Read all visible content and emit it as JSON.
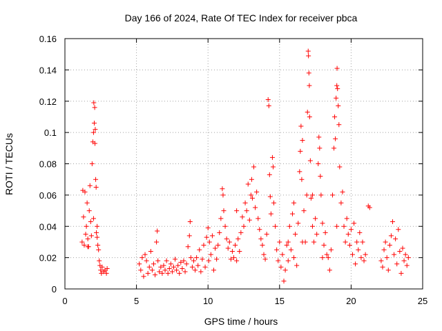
{
  "chart_data": {
    "type": "scatter",
    "title": "Day 166 of 2024, Rate Of TEC Index for receiver pbca",
    "xlabel": "GPS time / hours",
    "ylabel": "ROTI / TECUs",
    "xlim": [
      0,
      25
    ],
    "ylim": [
      0,
      0.16
    ],
    "xticks": [
      0,
      5,
      10,
      15,
      20,
      25
    ],
    "xtick_labels": [
      "0",
      "5",
      "10",
      "15",
      "20",
      "25"
    ],
    "yticks": [
      0,
      0.02,
      0.04,
      0.06,
      0.08,
      0.1,
      0.12,
      0.14,
      0.16
    ],
    "ytick_labels": [
      "0",
      "0.02",
      "0.04",
      "0.06",
      "0.08",
      "0.1",
      "0.12",
      "0.14",
      "0.16"
    ],
    "grid": true,
    "marker": "+",
    "color": "#ff0000",
    "series": [
      {
        "name": "ROTI",
        "points": [
          [
            1.2,
            0.03
          ],
          [
            1.25,
            0.063
          ],
          [
            1.3,
            0.046
          ],
          [
            1.35,
            0.028
          ],
          [
            1.4,
            0.062
          ],
          [
            1.45,
            0.035
          ],
          [
            1.5,
            0.04
          ],
          [
            1.55,
            0.055
          ],
          [
            1.6,
            0.032
          ],
          [
            1.65,
            0.027
          ],
          [
            1.7,
            0.05
          ],
          [
            1.75,
            0.066
          ],
          [
            1.8,
            0.043
          ],
          [
            1.85,
            0.034
          ],
          [
            1.9,
            0.08
          ],
          [
            1.95,
            0.094
          ],
          [
            2.0,
            0.1
          ],
          [
            2.02,
            0.119
          ],
          [
            2.05,
            0.106
          ],
          [
            2.08,
            0.116
          ],
          [
            2.1,
            0.093
          ],
          [
            2.12,
            0.102
          ],
          [
            2.15,
            0.07
          ],
          [
            2.18,
            0.065
          ],
          [
            2.2,
            0.036
          ],
          [
            2.25,
            0.04
          ],
          [
            2.3,
            0.028
          ],
          [
            2.35,
            0.025
          ],
          [
            2.4,
            0.018
          ],
          [
            2.45,
            0.015
          ],
          [
            2.5,
            0.012
          ],
          [
            2.55,
            0.01
          ],
          [
            2.6,
            0.014
          ],
          [
            2.7,
            0.011
          ],
          [
            2.8,
            0.012
          ],
          [
            2.9,
            0.01
          ],
          [
            2.95,
            0.013
          ],
          [
            2.0,
            0.045
          ],
          [
            1.6,
            0.027
          ],
          [
            2.25,
            0.033
          ],
          [
            5.2,
            0.016
          ],
          [
            5.3,
            0.012
          ],
          [
            5.4,
            0.02
          ],
          [
            5.5,
            0.008
          ],
          [
            5.6,
            0.022
          ],
          [
            5.7,
            0.018
          ],
          [
            5.8,
            0.01
          ],
          [
            5.9,
            0.014
          ],
          [
            6.0,
            0.024
          ],
          [
            6.1,
            0.012
          ],
          [
            6.2,
            0.016
          ],
          [
            6.3,
            0.009
          ],
          [
            6.4,
            0.03
          ],
          [
            6.45,
            0.037
          ],
          [
            6.5,
            0.018
          ],
          [
            6.6,
            0.011
          ],
          [
            6.7,
            0.014
          ],
          [
            6.8,
            0.01
          ],
          [
            6.9,
            0.015
          ],
          [
            7.0,
            0.012
          ],
          [
            7.1,
            0.018
          ],
          [
            7.2,
            0.01
          ],
          [
            7.3,
            0.013
          ],
          [
            7.4,
            0.016
          ],
          [
            7.5,
            0.011
          ],
          [
            7.6,
            0.014
          ],
          [
            7.7,
            0.019
          ],
          [
            7.8,
            0.012
          ],
          [
            7.9,
            0.015
          ],
          [
            8.0,
            0.01
          ],
          [
            8.1,
            0.017
          ],
          [
            8.2,
            0.013
          ],
          [
            8.3,
            0.018
          ],
          [
            8.4,
            0.011
          ],
          [
            8.5,
            0.016
          ],
          [
            8.6,
            0.027
          ],
          [
            8.7,
            0.034
          ],
          [
            8.75,
            0.043
          ],
          [
            8.8,
            0.02
          ],
          [
            8.9,
            0.014
          ],
          [
            9.0,
            0.018
          ],
          [
            9.1,
            0.012
          ],
          [
            9.2,
            0.02
          ],
          [
            9.3,
            0.015
          ],
          [
            9.4,
            0.025
          ],
          [
            9.5,
            0.011
          ],
          [
            9.6,
            0.019
          ],
          [
            9.7,
            0.028
          ],
          [
            9.8,
            0.014
          ],
          [
            9.9,
            0.033
          ],
          [
            10.0,
            0.039
          ],
          [
            10.05,
            0.018
          ],
          [
            10.1,
            0.03
          ],
          [
            10.2,
            0.022
          ],
          [
            10.3,
            0.034
          ],
          [
            10.4,
            0.012
          ],
          [
            10.5,
            0.026
          ],
          [
            10.6,
            0.019
          ],
          [
            10.7,
            0.028
          ],
          [
            10.8,
            0.036
          ],
          [
            10.9,
            0.045
          ],
          [
            11.0,
            0.064
          ],
          [
            11.05,
            0.06
          ],
          [
            11.1,
            0.05
          ],
          [
            11.2,
            0.04
          ],
          [
            11.3,
            0.032
          ],
          [
            11.4,
            0.026
          ],
          [
            11.5,
            0.03
          ],
          [
            11.6,
            0.019
          ],
          [
            11.7,
            0.024
          ],
          [
            11.8,
            0.02
          ],
          [
            11.9,
            0.028
          ],
          [
            12.0,
            0.018
          ],
          [
            12.1,
            0.032
          ],
          [
            12.2,
            0.024
          ],
          [
            12.3,
            0.036
          ],
          [
            12.4,
            0.046
          ],
          [
            12.5,
            0.04
          ],
          [
            12.6,
            0.055
          ],
          [
            12.7,
            0.05
          ],
          [
            12.8,
            0.067
          ],
          [
            12.9,
            0.044
          ],
          [
            13.0,
            0.06
          ],
          [
            13.05,
            0.07
          ],
          [
            13.1,
            0.058
          ],
          [
            13.2,
            0.078
          ],
          [
            13.3,
            0.052
          ],
          [
            13.4,
            0.062
          ],
          [
            13.5,
            0.045
          ],
          [
            13.6,
            0.038
          ],
          [
            13.7,
            0.032
          ],
          [
            13.8,
            0.028
          ],
          [
            13.9,
            0.022
          ],
          [
            14.0,
            0.019
          ],
          [
            14.1,
            0.035
          ],
          [
            14.2,
            0.121
          ],
          [
            14.25,
            0.117
          ],
          [
            14.3,
            0.073
          ],
          [
            14.35,
            0.059
          ],
          [
            14.4,
            0.048
          ],
          [
            14.5,
            0.084
          ],
          [
            14.55,
            0.078
          ],
          [
            14.6,
            0.055
          ],
          [
            14.7,
            0.04
          ],
          [
            14.8,
            0.025
          ],
          [
            14.9,
            0.018
          ],
          [
            15.0,
            0.03
          ],
          [
            15.1,
            0.014
          ],
          [
            15.2,
            0.022
          ],
          [
            15.3,
            0.005
          ],
          [
            15.4,
            0.012
          ],
          [
            15.5,
            0.028
          ],
          [
            15.6,
            0.018
          ],
          [
            15.7,
            0.04
          ],
          [
            15.8,
            0.025
          ],
          [
            15.9,
            0.048
          ],
          [
            16.0,
            0.02
          ],
          [
            16.1,
            0.035
          ],
          [
            16.2,
            0.015
          ],
          [
            16.3,
            0.042
          ],
          [
            16.4,
            0.075
          ],
          [
            16.45,
            0.088
          ],
          [
            16.5,
            0.104
          ],
          [
            16.55,
            0.07
          ],
          [
            16.6,
            0.095
          ],
          [
            16.7,
            0.05
          ],
          [
            16.8,
            0.03
          ],
          [
            16.9,
            0.06
          ],
          [
            16.95,
            0.113
          ],
          [
            17.0,
            0.152
          ],
          [
            17.02,
            0.149
          ],
          [
            17.05,
            0.138
          ],
          [
            17.08,
            0.13
          ],
          [
            17.1,
            0.11
          ],
          [
            17.15,
            0.082
          ],
          [
            17.2,
            0.058
          ],
          [
            17.3,
            0.04
          ],
          [
            17.4,
            0.03
          ],
          [
            17.5,
            0.045
          ],
          [
            17.6,
            0.035
          ],
          [
            17.7,
            0.08
          ],
          [
            17.75,
            0.097
          ],
          [
            17.8,
            0.09
          ],
          [
            17.85,
            0.072
          ],
          [
            17.9,
            0.06
          ],
          [
            18.0,
            0.042
          ],
          [
            18.1,
            0.028
          ],
          [
            18.2,
            0.036
          ],
          [
            18.3,
            0.022
          ],
          [
            18.4,
            0.02
          ],
          [
            18.5,
            0.012
          ],
          [
            18.6,
            0.025
          ],
          [
            18.7,
            0.06
          ],
          [
            18.8,
            0.09
          ],
          [
            18.85,
            0.11
          ],
          [
            18.9,
            0.096
          ],
          [
            18.95,
            0.122
          ],
          [
            19.0,
            0.13
          ],
          [
            19.02,
            0.141
          ],
          [
            19.05,
            0.128
          ],
          [
            19.1,
            0.117
          ],
          [
            19.15,
            0.105
          ],
          [
            19.2,
            0.078
          ],
          [
            19.3,
            0.055
          ],
          [
            19.4,
            0.062
          ],
          [
            19.5,
            0.04
          ],
          [
            19.6,
            0.03
          ],
          [
            19.7,
            0.045
          ],
          [
            19.8,
            0.035
          ],
          [
            19.9,
            0.028
          ],
          [
            20.0,
            0.038
          ],
          [
            20.1,
            0.022
          ],
          [
            20.2,
            0.042
          ],
          [
            20.3,
            0.016
          ],
          [
            20.4,
            0.03
          ],
          [
            20.5,
            0.025
          ],
          [
            20.6,
            0.036
          ],
          [
            20.7,
            0.02
          ],
          [
            20.8,
            0.03
          ],
          [
            20.9,
            0.018
          ],
          [
            21.0,
            0.022
          ],
          [
            21.2,
            0.053
          ],
          [
            21.3,
            0.052
          ],
          [
            15.6,
            0.03
          ],
          [
            16.0,
            0.055
          ],
          [
            16.6,
            0.03
          ],
          [
            17.3,
            0.06
          ],
          [
            18.0,
            0.02
          ],
          [
            19.0,
            0.04
          ],
          [
            12.0,
            0.05
          ],
          [
            22.1,
            0.018
          ],
          [
            22.2,
            0.014
          ],
          [
            22.3,
            0.025
          ],
          [
            22.4,
            0.03
          ],
          [
            22.5,
            0.02
          ],
          [
            22.6,
            0.012
          ],
          [
            22.7,
            0.028
          ],
          [
            22.8,
            0.034
          ],
          [
            22.9,
            0.043
          ],
          [
            23.0,
            0.022
          ],
          [
            23.1,
            0.032
          ],
          [
            23.2,
            0.016
          ],
          [
            23.3,
            0.038
          ],
          [
            23.4,
            0.024
          ],
          [
            23.5,
            0.01
          ],
          [
            23.6,
            0.026
          ],
          [
            23.7,
            0.018
          ],
          [
            23.8,
            0.022
          ],
          [
            23.9,
            0.015
          ],
          [
            24.0,
            0.02
          ]
        ]
      }
    ]
  }
}
